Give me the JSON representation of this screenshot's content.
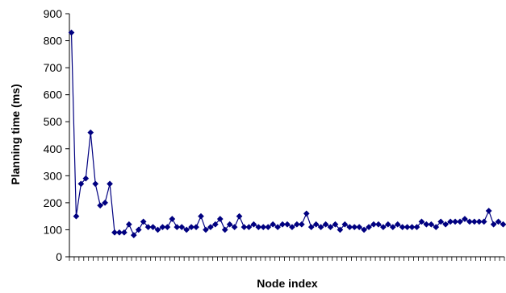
{
  "chart_data": {
    "type": "line",
    "xlabel": "Node index",
    "ylabel": "Planning time (ms)",
    "ylim": [
      0,
      900
    ],
    "yticks": [
      "0",
      "100",
      "200",
      "300",
      "400",
      "500",
      "600",
      "700",
      "800",
      "900"
    ],
    "grid": false,
    "legend": "none",
    "series_color": "#000080",
    "series": [
      {
        "values": [
          830,
          150,
          270,
          290,
          460,
          270,
          190,
          200,
          270,
          90,
          90,
          90,
          120,
          80,
          100,
          130,
          110,
          110,
          100,
          110,
          110,
          140,
          110,
          110,
          100,
          110,
          110,
          150,
          100,
          110,
          120,
          140,
          100,
          120,
          110,
          150,
          110,
          110,
          120,
          110,
          110,
          110,
          120,
          110,
          120,
          120,
          110,
          120,
          120,
          160,
          110,
          120,
          110,
          120,
          110,
          120,
          100,
          120,
          110,
          110,
          110,
          100,
          110,
          120,
          120,
          110,
          120,
          110,
          120,
          110,
          110,
          110,
          110,
          130,
          120,
          120,
          110,
          130,
          120,
          130,
          130,
          130,
          140,
          130,
          130,
          130,
          130,
          170,
          120,
          130,
          120
        ]
      }
    ]
  }
}
